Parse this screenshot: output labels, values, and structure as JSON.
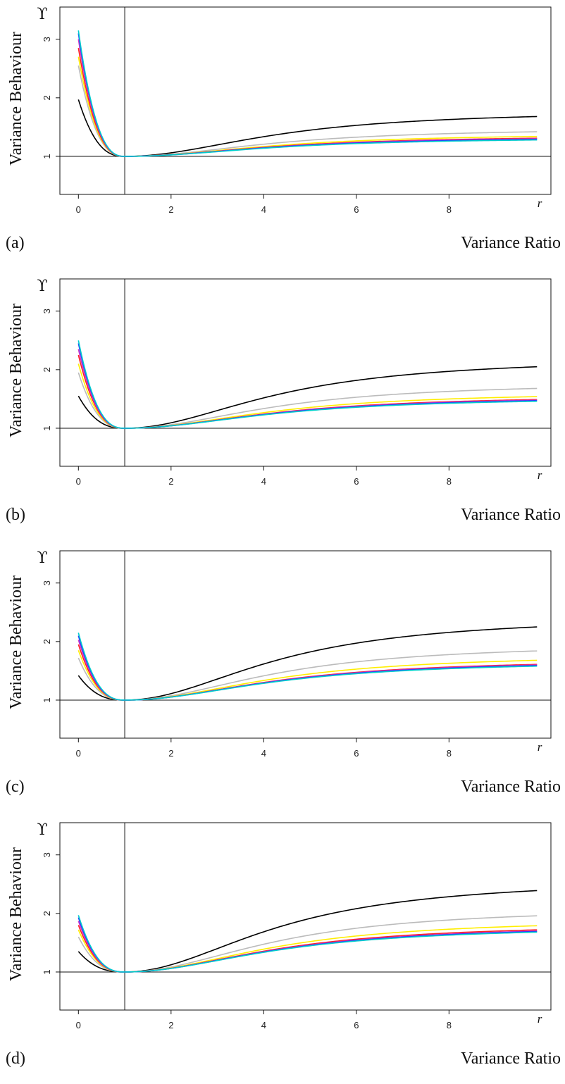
{
  "chart_data": [
    {
      "panel_label": "(a)",
      "type": "line",
      "xlabel": "Variance Ratio",
      "ylabel": "Variance Behaviour",
      "x_axis_symbol": "r",
      "y_axis_symbol": "ϒ",
      "xlim": [
        -0.4,
        10.2
      ],
      "ylim": [
        0.35,
        3.55
      ],
      "x_ticks": [
        "0",
        "2",
        "4",
        "6",
        "8"
      ],
      "y_ticks": [
        "1",
        "2",
        "3"
      ],
      "reference_lines": {
        "x": 1,
        "y": 1
      },
      "series": [
        {
          "color": "#000000",
          "y_at_0": 1.97,
          "y_at_9.9": 1.68
        },
        {
          "color": "#bbbbbb",
          "y_at_0": 2.55,
          "y_at_9.9": 1.42
        },
        {
          "color": "#ffee00",
          "y_at_0": 2.7,
          "y_at_9.9": 1.34
        },
        {
          "color": "#ff2222",
          "y_at_0": 2.85,
          "y_at_9.9": 1.31
        },
        {
          "color": "#cc33cc",
          "y_at_0": 3.0,
          "y_at_9.9": 1.3
        },
        {
          "color": "#2233ff",
          "y_at_0": 3.1,
          "y_at_9.9": 1.29
        },
        {
          "color": "#00cccc",
          "y_at_0": 3.15,
          "y_at_9.9": 1.28
        }
      ]
    },
    {
      "panel_label": "(b)",
      "type": "line",
      "xlabel": "Variance Ratio",
      "ylabel": "Variance Behaviour",
      "x_axis_symbol": "r",
      "y_axis_symbol": "ϒ",
      "xlim": [
        -0.4,
        10.2
      ],
      "ylim": [
        0.35,
        3.55
      ],
      "x_ticks": [
        "0",
        "2",
        "4",
        "6",
        "8"
      ],
      "y_ticks": [
        "1",
        "2",
        "3"
      ],
      "reference_lines": {
        "x": 1,
        "y": 1
      },
      "series": [
        {
          "color": "#000000",
          "y_at_0": 1.55,
          "y_at_9.9": 2.05
        },
        {
          "color": "#bbbbbb",
          "y_at_0": 1.95,
          "y_at_9.9": 1.68
        },
        {
          "color": "#ffee00",
          "y_at_0": 2.1,
          "y_at_9.9": 1.54
        },
        {
          "color": "#ff2222",
          "y_at_0": 2.25,
          "y_at_9.9": 1.49
        },
        {
          "color": "#cc33cc",
          "y_at_0": 2.35,
          "y_at_9.9": 1.48
        },
        {
          "color": "#2233ff",
          "y_at_0": 2.45,
          "y_at_9.9": 1.47
        },
        {
          "color": "#00cccc",
          "y_at_0": 2.5,
          "y_at_9.9": 1.46
        }
      ]
    },
    {
      "panel_label": "(c)",
      "type": "line",
      "xlabel": "Variance Ratio",
      "ylabel": "Variance Behaviour",
      "x_axis_symbol": "r",
      "y_axis_symbol": "ϒ",
      "xlim": [
        -0.4,
        10.2
      ],
      "ylim": [
        0.35,
        3.55
      ],
      "x_ticks": [
        "0",
        "2",
        "4",
        "6",
        "8"
      ],
      "y_ticks": [
        "1",
        "2",
        "3"
      ],
      "reference_lines": {
        "x": 1,
        "y": 1
      },
      "series": [
        {
          "color": "#000000",
          "y_at_0": 1.42,
          "y_at_9.9": 2.25
        },
        {
          "color": "#bbbbbb",
          "y_at_0": 1.72,
          "y_at_9.9": 1.84
        },
        {
          "color": "#ffee00",
          "y_at_0": 1.85,
          "y_at_9.9": 1.68
        },
        {
          "color": "#ff2222",
          "y_at_0": 1.95,
          "y_at_9.9": 1.61
        },
        {
          "color": "#cc33cc",
          "y_at_0": 2.03,
          "y_at_9.9": 1.6
        },
        {
          "color": "#2233ff",
          "y_at_0": 2.1,
          "y_at_9.9": 1.59
        },
        {
          "color": "#00cccc",
          "y_at_0": 2.15,
          "y_at_9.9": 1.58
        }
      ]
    },
    {
      "panel_label": "(d)",
      "type": "line",
      "xlabel": "Variance Ratio",
      "ylabel": "Variance Behaviour",
      "x_axis_symbol": "r",
      "y_axis_symbol": "ϒ",
      "xlim": [
        -0.4,
        10.2
      ],
      "ylim": [
        0.35,
        3.55
      ],
      "x_ticks": [
        "0",
        "2",
        "4",
        "6",
        "8"
      ],
      "y_ticks": [
        "1",
        "2",
        "3"
      ],
      "reference_lines": {
        "x": 1,
        "y": 1
      },
      "series": [
        {
          "color": "#000000",
          "y_at_0": 1.35,
          "y_at_9.9": 2.39
        },
        {
          "color": "#bbbbbb",
          "y_at_0": 1.6,
          "y_at_9.9": 1.96
        },
        {
          "color": "#ffee00",
          "y_at_0": 1.72,
          "y_at_9.9": 1.79
        },
        {
          "color": "#ff2222",
          "y_at_0": 1.8,
          "y_at_9.9": 1.72
        },
        {
          "color": "#cc33cc",
          "y_at_0": 1.87,
          "y_at_9.9": 1.7
        },
        {
          "color": "#2233ff",
          "y_at_0": 1.93,
          "y_at_9.9": 1.69
        },
        {
          "color": "#00cccc",
          "y_at_0": 1.97,
          "y_at_9.9": 1.68
        }
      ]
    }
  ]
}
